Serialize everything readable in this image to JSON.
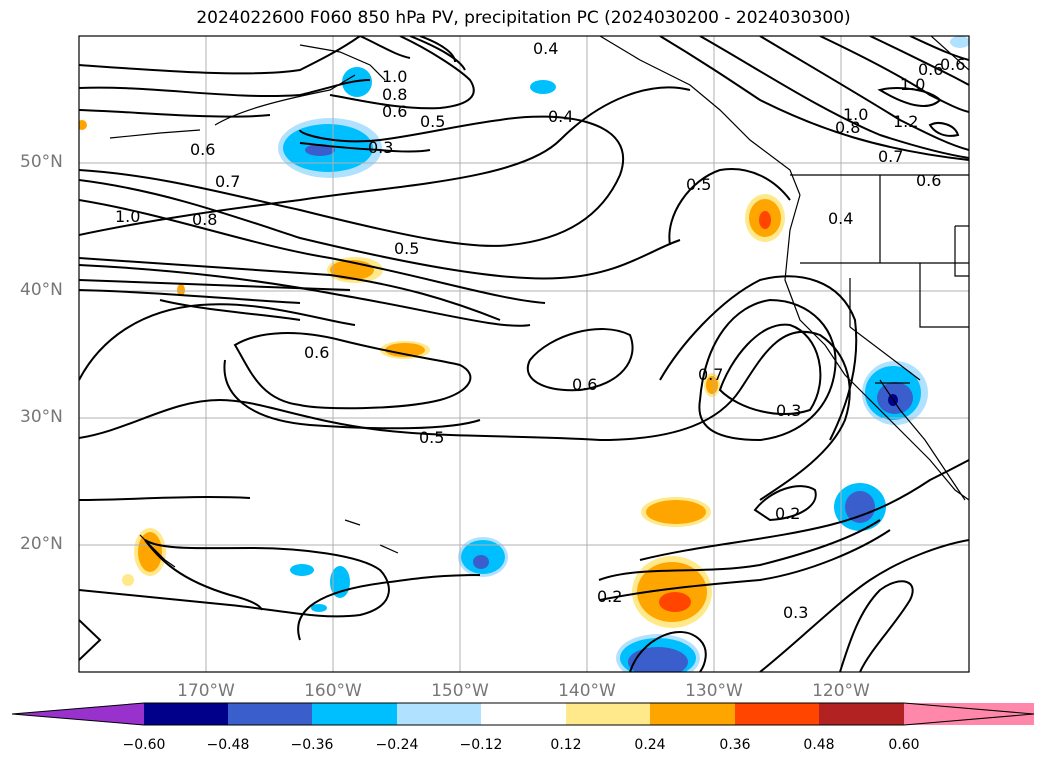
{
  "title": "2024022600 F060 850 hPa PV, precipitation PC (2024030200 - 2024030300)",
  "lat_labels": [
    "50°N",
    "40°N",
    "30°N",
    "20°N"
  ],
  "lon_labels": [
    "170°W",
    "160°W",
    "150°W",
    "140°W",
    "130°W",
    "120°W"
  ],
  "contour_labels": [
    "0.4",
    "1.0",
    "0.8",
    "0.6",
    "0.5",
    "0.4",
    "0.3",
    "0.6",
    "0.7",
    "1.0",
    "0.8",
    "0.5",
    "0.5",
    "0.4",
    "1.0",
    "0.8",
    "0.7",
    "0.6",
    "1.2",
    "1.0",
    "0.6",
    "0.6",
    "0.6",
    "0.6",
    "0.7",
    "0.3",
    "0.5",
    "0.2",
    "0.2",
    "0.3"
  ],
  "colorbar": {
    "tick_labels": [
      "−0.60",
      "−0.48",
      "−0.36",
      "−0.24",
      "−0.12",
      "0.12",
      "0.24",
      "0.36",
      "0.48",
      "0.60"
    ],
    "colors": [
      "#9932CC",
      "#00008B",
      "#3A5FCD",
      "#00BFFF",
      "#B0E2FF",
      "#FFFFFF",
      "#FFE98A",
      "#FFA500",
      "#FF4500",
      "#B22222",
      "#FF88AA"
    ]
  }
}
